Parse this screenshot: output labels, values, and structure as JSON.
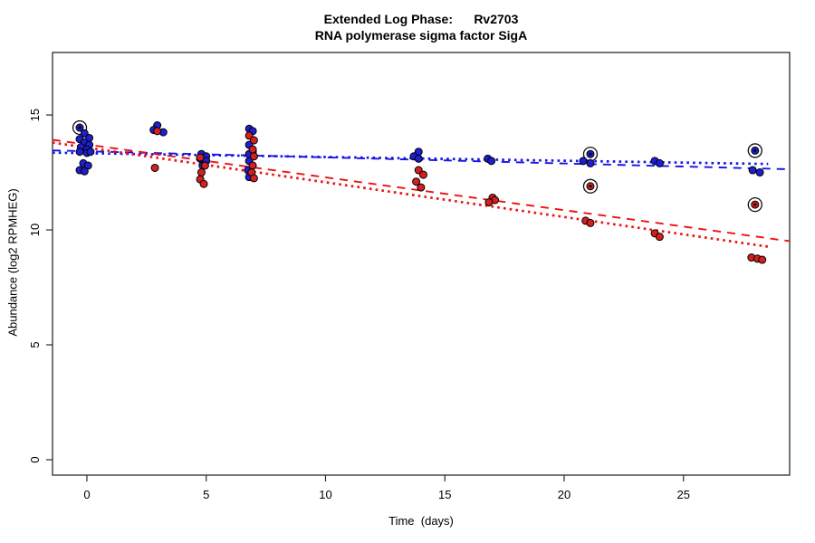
{
  "title": {
    "line1": "Extended Log Phase:      Rv2703",
    "line2": "RNA polymerase sigma factor SigA"
  },
  "chart_data": {
    "type": "scatter",
    "title": "Extended Log Phase: Rv2703 — RNA polymerase sigma factor SigA",
    "xlabel": "Time  (days)",
    "ylabel": "Abundance  (log2 RPMHEG)",
    "xlim": [
      -1.44,
      29.45
    ],
    "ylim": [
      -0.67,
      17.72
    ],
    "x_ticks": [
      0,
      5,
      10,
      15,
      20,
      25
    ],
    "y_ticks": [
      0,
      5,
      10,
      15
    ],
    "grid": false,
    "legend": "none",
    "point_note": "points format [day, abundance, circled_flag]",
    "series": [
      {
        "name": "blue-condition",
        "color": "#1E1ED2",
        "points": [
          [
            -0.3,
            14.45,
            1
          ],
          [
            -0.1,
            14.2
          ],
          [
            0.1,
            14.0
          ],
          [
            -0.3,
            13.95
          ],
          [
            -0.1,
            13.8
          ],
          [
            0.1,
            13.7
          ],
          [
            -0.25,
            13.6
          ],
          [
            0,
            13.5
          ],
          [
            -0.3,
            13.4
          ],
          [
            0,
            13.35
          ],
          [
            0.15,
            13.4
          ],
          [
            -0.15,
            12.9
          ],
          [
            0.05,
            12.8
          ],
          [
            -0.3,
            12.6
          ],
          [
            -0.1,
            12.55
          ],
          [
            2.95,
            14.55
          ],
          [
            2.8,
            14.35
          ],
          [
            3.2,
            14.25
          ],
          [
            4.8,
            13.3
          ],
          [
            5.0,
            13.2
          ],
          [
            4.75,
            13.1
          ],
          [
            5.0,
            13.0
          ],
          [
            4.85,
            12.8
          ],
          [
            6.8,
            14.4
          ],
          [
            6.95,
            14.3
          ],
          [
            6.8,
            13.7
          ],
          [
            6.95,
            13.4
          ],
          [
            6.8,
            13.3
          ],
          [
            6.8,
            13.0
          ],
          [
            6.75,
            12.6
          ],
          [
            6.8,
            12.3
          ],
          [
            13.9,
            13.4
          ],
          [
            13.7,
            13.2
          ],
          [
            13.9,
            13.1
          ],
          [
            16.8,
            13.1
          ],
          [
            16.95,
            13.0
          ],
          [
            21.1,
            13.3,
            1
          ],
          [
            20.8,
            13.0
          ],
          [
            21.1,
            12.9
          ],
          [
            23.8,
            13.0
          ],
          [
            24.0,
            12.9
          ],
          [
            28.0,
            13.45,
            1
          ],
          [
            27.9,
            12.6
          ],
          [
            28.2,
            12.5
          ]
        ]
      },
      {
        "name": "red-condition",
        "color": "#D42020",
        "points": [
          [
            2.95,
            14.3
          ],
          [
            2.85,
            12.7
          ],
          [
            4.75,
            13.15
          ],
          [
            4.95,
            12.8
          ],
          [
            4.8,
            12.5
          ],
          [
            4.75,
            12.2
          ],
          [
            4.9,
            12.0
          ],
          [
            6.8,
            14.1
          ],
          [
            7.0,
            13.9
          ],
          [
            6.95,
            13.5
          ],
          [
            7.0,
            13.2
          ],
          [
            6.95,
            12.8
          ],
          [
            6.9,
            12.5
          ],
          [
            7.0,
            12.25
          ],
          [
            13.9,
            12.6
          ],
          [
            14.1,
            12.4
          ],
          [
            13.8,
            12.1
          ],
          [
            14.0,
            11.85
          ],
          [
            17.0,
            11.4
          ],
          [
            17.1,
            11.3
          ],
          [
            16.85,
            11.2
          ],
          [
            21.1,
            11.9,
            1
          ],
          [
            20.9,
            10.4
          ],
          [
            21.1,
            10.3
          ],
          [
            23.8,
            9.85
          ],
          [
            24.0,
            9.7
          ],
          [
            28.0,
            11.1,
            1
          ],
          [
            27.85,
            8.8
          ],
          [
            28.1,
            8.75
          ],
          [
            28.3,
            8.7
          ]
        ]
      }
    ],
    "trend_lines": [
      {
        "series": "blue-condition",
        "style": "dashed",
        "color": "#1515E6",
        "x": [
          -1.44,
          29.45
        ],
        "y": [
          13.46,
          12.64
        ]
      },
      {
        "series": "blue-condition",
        "style": "dotted",
        "color": "#1515E6",
        "x": [
          -1.44,
          28.55
        ],
        "y": [
          13.36,
          12.87
        ]
      },
      {
        "series": "red-condition",
        "style": "dashed",
        "color": "#EE1111",
        "x": [
          -1.44,
          29.45
        ],
        "y": [
          13.92,
          9.51
        ]
      },
      {
        "series": "red-condition",
        "style": "dotted",
        "color": "#EE1111",
        "x": [
          -1.44,
          28.55
        ],
        "y": [
          13.8,
          9.27
        ]
      }
    ],
    "marker_colors": {
      "outline": "#000000",
      "circled_ring": "#111111"
    }
  }
}
